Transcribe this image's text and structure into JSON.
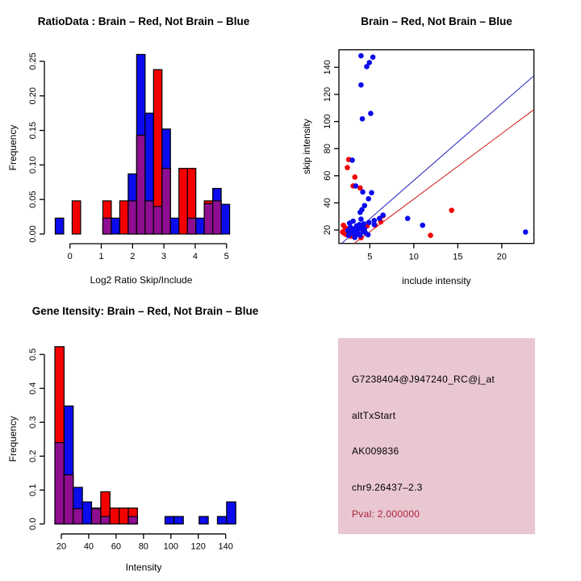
{
  "colors": {
    "red": "#f40000",
    "blue": "#0b0bee",
    "overlap_purple": "#8e0d90",
    "axis_black": "#000000",
    "blue_line": "#2222bb",
    "red_line": "#cc1111",
    "pval_text": "#a82238",
    "info_box_pink": "#efc6cf"
  },
  "chart_data": [
    {
      "id": "ratio_hist",
      "type": "bar",
      "title": "RatioData : Brain – Red, Not Brain – Blue",
      "xlabel": "Log2 Ratio Skip/Include",
      "ylabel": "Frequency",
      "x_tick_labels": [
        "0",
        "1",
        "2",
        "3",
        "4",
        "5"
      ],
      "x_tick_values": [
        0,
        1,
        2,
        3,
        4,
        5
      ],
      "y_tick_labels": [
        "0.00",
        "0.05",
        "0.10",
        "0.15",
        "0.20",
        "0.25"
      ],
      "y_tick_values": [
        0,
        0.05,
        0.1,
        0.15,
        0.2,
        0.25
      ],
      "xlim": [
        -0.7,
        5.3
      ],
      "ylim": [
        0,
        0.26
      ],
      "bin_width": 0.27,
      "bars": [
        {
          "x": -0.47,
          "color": "blue",
          "height": 0.023,
          "overlap": 0
        },
        {
          "x": 0.07,
          "color": "red",
          "height": 0.048,
          "overlap": 0
        },
        {
          "x": 1.05,
          "color": "red",
          "height": 0.048,
          "overlap": 0.023
        },
        {
          "x": 1.32,
          "color": "blue",
          "height": 0.023,
          "overlap": 0
        },
        {
          "x": 1.59,
          "color": "red",
          "height": 0.048,
          "overlap": 0
        },
        {
          "x": 1.86,
          "color": "blue",
          "height": 0.087,
          "overlap": 0.048
        },
        {
          "x": 2.13,
          "color": "blue",
          "height": 0.26,
          "overlap": 0.143
        },
        {
          "x": 2.4,
          "color": "blue",
          "height": 0.175,
          "overlap": 0.048
        },
        {
          "x": 2.67,
          "color": "red",
          "height": 0.238,
          "overlap": 0.04
        },
        {
          "x": 2.94,
          "color": "blue",
          "height": 0.152,
          "overlap": 0.095
        },
        {
          "x": 3.21,
          "color": "blue",
          "height": 0.023,
          "overlap": 0
        },
        {
          "x": 3.48,
          "color": "red",
          "height": 0.095,
          "overlap": 0
        },
        {
          "x": 3.75,
          "color": "red",
          "height": 0.095,
          "overlap": 0.023
        },
        {
          "x": 4.02,
          "color": "blue",
          "height": 0.023,
          "overlap": 0
        },
        {
          "x": 4.29,
          "color": "red",
          "height": 0.048,
          "overlap": 0.044
        },
        {
          "x": 4.56,
          "color": "blue",
          "height": 0.066,
          "overlap": 0.048
        },
        {
          "x": 4.83,
          "color": "blue",
          "height": 0.043,
          "overlap": 0
        }
      ]
    },
    {
      "id": "scatter",
      "type": "scatter",
      "title": "Brain – Red, Not Brain – Blue",
      "xlabel": "include intensity",
      "ylabel": "skip intensity",
      "x_tick_labels": [
        "5",
        "10",
        "15",
        "20"
      ],
      "x_tick_values": [
        5,
        10,
        15,
        20
      ],
      "y_tick_labels": [
        "20",
        "40",
        "60",
        "80",
        "100",
        "120",
        "140"
      ],
      "y_tick_values": [
        20,
        40,
        60,
        80,
        100,
        120,
        140
      ],
      "xlim": [
        1.48,
        23.66
      ],
      "ylim": [
        10,
        153
      ],
      "series": [
        {
          "name": "Not Brain (blue)",
          "color": "blue",
          "points": [
            [
              4.0,
              148.5
            ],
            [
              5.35,
              147.5
            ],
            [
              4.95,
              143.5
            ],
            [
              4.65,
              140.5
            ],
            [
              4.0,
              127
            ],
            [
              5.1,
              106
            ],
            [
              4.15,
              102
            ],
            [
              3.0,
              71.5
            ],
            [
              3.4,
              52.5
            ],
            [
              4.2,
              48
            ],
            [
              5.2,
              47.5
            ],
            [
              4.85,
              43
            ],
            [
              4.4,
              38
            ],
            [
              4.1,
              35
            ],
            [
              3.9,
              33
            ],
            [
              6.5,
              31
            ],
            [
              6.1,
              28.5
            ],
            [
              5.5,
              27
            ],
            [
              4.0,
              28
            ],
            [
              3.1,
              26.5
            ],
            [
              2.7,
              25
            ],
            [
              4.9,
              25.5
            ],
            [
              5.5,
              24
            ],
            [
              9.3,
              28.5
            ],
            [
              11.0,
              23.5
            ],
            [
              22.7,
              18.5
            ],
            [
              2.8,
              22
            ],
            [
              3.0,
              20
            ],
            [
              3.3,
              21
            ],
            [
              3.7,
              21
            ],
            [
              4.0,
              22
            ],
            [
              4.4,
              21
            ],
            [
              2.9,
              18.5
            ],
            [
              3.1,
              17.5
            ],
            [
              3.4,
              16.5
            ],
            [
              3.6,
              18
            ],
            [
              3.9,
              16
            ],
            [
              4.2,
              19
            ],
            [
              4.5,
              18
            ],
            [
              4.8,
              16.5
            ],
            [
              3.3,
              14.5
            ],
            [
              2.6,
              16
            ],
            [
              3.8,
              24
            ],
            [
              4.3,
              24.5
            ],
            [
              3.5,
              23
            ],
            [
              2.5,
              19.5
            ]
          ]
        },
        {
          "name": "Brain (red)",
          "color": "red",
          "points": [
            [
              2.6,
              72
            ],
            [
              2.45,
              66
            ],
            [
              3.3,
              59
            ],
            [
              3.1,
              52.5
            ],
            [
              3.9,
              51
            ],
            [
              14.3,
              34.5
            ],
            [
              11.9,
              16
            ],
            [
              6.5,
              30.5
            ],
            [
              6.25,
              26
            ],
            [
              5.6,
              23.5
            ],
            [
              4.7,
              23
            ],
            [
              4.0,
              14.3
            ],
            [
              2.0,
              23.5
            ],
            [
              1.9,
              18.5
            ],
            [
              2.1,
              17.5
            ],
            [
              2.35,
              16.5
            ],
            [
              2.6,
              21
            ],
            [
              2.8,
              15.5
            ],
            [
              3.2,
              15
            ],
            [
              2.2,
              21.5
            ]
          ]
        }
      ],
      "lines": [
        {
          "color": "blue",
          "p1": [
            1.45,
            8.2
          ],
          "p2": [
            23.7,
            134
          ]
        },
        {
          "color": "red",
          "p1": [
            1.45,
            1.5
          ],
          "p2": [
            23.7,
            109
          ]
        }
      ]
    },
    {
      "id": "gene_hist",
      "type": "bar",
      "title": "Gene Itensity: Brain – Red, Not Brain – Blue",
      "xlabel": "Intensity",
      "ylabel": "Frequency",
      "x_tick_labels": [
        "20",
        "40",
        "60",
        "80",
        "100",
        "120",
        "140"
      ],
      "x_tick_values": [
        20,
        40,
        60,
        80,
        100,
        120,
        140
      ],
      "y_tick_labels": [
        "0.0",
        "0.1",
        "0.2",
        "0.3",
        "0.4",
        "0.5"
      ],
      "y_tick_values": [
        0,
        0.1,
        0.2,
        0.3,
        0.4,
        0.5
      ],
      "xlim": [
        12,
        150
      ],
      "ylim": [
        0,
        0.53
      ],
      "bin_width": 6.7,
      "bars": [
        {
          "x": 15.3,
          "color": "red",
          "height": 0.523,
          "overlap": 0.24
        },
        {
          "x": 22.0,
          "color": "blue",
          "height": 0.348,
          "overlap": 0.145
        },
        {
          "x": 28.7,
          "color": "blue",
          "height": 0.108,
          "overlap": 0.045
        },
        {
          "x": 35.4,
          "color": "blue",
          "height": 0.065,
          "overlap": 0
        },
        {
          "x": 42.1,
          "color": "red",
          "height": 0.047,
          "overlap": 0.045
        },
        {
          "x": 48.8,
          "color": "red",
          "height": 0.095,
          "overlap": 0.022
        },
        {
          "x": 55.5,
          "color": "red",
          "height": 0.047,
          "overlap": 0
        },
        {
          "x": 62.2,
          "color": "red",
          "height": 0.047,
          "overlap": 0
        },
        {
          "x": 68.9,
          "color": "red",
          "height": 0.047,
          "overlap": 0.022
        },
        {
          "x": 95.7,
          "color": "blue",
          "height": 0.022,
          "overlap": 0
        },
        {
          "x": 102.4,
          "color": "blue",
          "height": 0.022,
          "overlap": 0
        },
        {
          "x": 120.6,
          "color": "blue",
          "height": 0.022,
          "overlap": 0
        },
        {
          "x": 134.0,
          "color": "blue",
          "height": 0.022,
          "overlap": 0
        },
        {
          "x": 140.7,
          "color": "blue",
          "height": 0.065,
          "overlap": 0
        }
      ]
    }
  ],
  "info_box": {
    "lines": [
      "G7238404@J947240_RC@j_at",
      "altTxStart",
      "AK009836",
      "chr9.26437–2.3"
    ],
    "pval_line": "Pval: 2.000000"
  }
}
